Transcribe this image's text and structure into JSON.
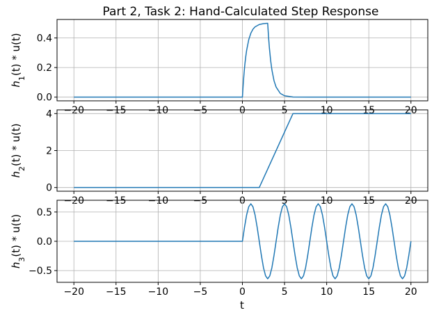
{
  "figure": {
    "title": "Part 2, Task 2: Hand-Calculated Step Response",
    "xlabel": "t",
    "line_color": "#1f77b4",
    "grid": true
  },
  "chart_data": [
    {
      "type": "line",
      "ylabel_func": "h",
      "ylabel_sub": "1",
      "ylabel_rest": "(t) * u(t)",
      "xlim": [
        -22,
        22
      ],
      "ylim": [
        -0.025,
        0.525
      ],
      "xticks": [
        -20,
        -15,
        -10,
        -5,
        0,
        5,
        10,
        15,
        20
      ],
      "xtick_labels": [
        "−20",
        "−15",
        "−10",
        "−5",
        "0",
        "5",
        "10",
        "15",
        "20"
      ],
      "yticks": [
        0.0,
        0.2,
        0.4
      ],
      "ytick_labels": [
        "0.0",
        "0.2",
        "0.4"
      ],
      "x": [
        -20,
        -15,
        -10,
        -5,
        0,
        0.05,
        0.1,
        0.2,
        0.3,
        0.4,
        0.5,
        0.75,
        1,
        1.25,
        1.5,
        2,
        2.5,
        3,
        3.1,
        3.2,
        3.35,
        3.5,
        3.75,
        4,
        4.5,
        5,
        6,
        8,
        10,
        15,
        20
      ],
      "y": [
        0,
        0,
        0,
        0,
        0,
        0.048,
        0.091,
        0.165,
        0.226,
        0.275,
        0.316,
        0.388,
        0.432,
        0.459,
        0.475,
        0.491,
        0.497,
        0.499,
        0.408,
        0.334,
        0.248,
        0.184,
        0.111,
        0.068,
        0.025,
        0.009,
        0.001,
        0,
        0,
        0,
        0
      ]
    },
    {
      "type": "line",
      "ylabel_func": "h",
      "ylabel_sub": "2",
      "ylabel_rest": "(t) * u(t)",
      "xlim": [
        -22,
        22
      ],
      "ylim": [
        -0.2,
        4.2
      ],
      "xticks": [
        -20,
        -15,
        -10,
        -5,
        0,
        5,
        10,
        15,
        20
      ],
      "xtick_labels": [
        "−20",
        "−15",
        "−10",
        "−5",
        "0",
        "5",
        "10",
        "15",
        "20"
      ],
      "yticks": [
        0,
        2,
        4
      ],
      "ytick_labels": [
        "0",
        "2",
        "4"
      ],
      "x": [
        -20,
        2,
        6,
        20
      ],
      "y": [
        0,
        0,
        4,
        4
      ]
    },
    {
      "type": "line",
      "ylabel_func": "h",
      "ylabel_sub": "3",
      "ylabel_rest": "(t) * u(t)",
      "xlim": [
        -22,
        22
      ],
      "ylim": [
        -0.7,
        0.7
      ],
      "xticks": [
        -20,
        -15,
        -10,
        -5,
        0,
        5,
        10,
        15,
        20
      ],
      "xtick_labels": [
        "−20",
        "−15",
        "−10",
        "−5",
        "0",
        "5",
        "10",
        "15",
        "20"
      ],
      "yticks": [
        -0.5,
        0.0,
        0.5
      ],
      "ytick_labels": [
        "−0.5",
        "0.0",
        "0.5"
      ],
      "x": [
        -20,
        -10,
        0,
        0.25,
        0.5,
        0.75,
        1,
        1.25,
        1.5,
        1.75,
        2,
        2.25,
        2.5,
        2.75,
        3,
        3.25,
        3.5,
        3.75,
        4,
        4.25,
        4.5,
        4.75,
        5,
        5.25,
        5.5,
        5.75,
        6,
        6.25,
        6.5,
        6.75,
        7,
        7.25,
        7.5,
        7.75,
        8,
        8.25,
        8.5,
        8.75,
        9,
        9.25,
        9.5,
        9.75,
        10,
        10.25,
        10.5,
        10.75,
        11,
        11.25,
        11.5,
        11.75,
        12,
        12.25,
        12.5,
        12.75,
        13,
        13.25,
        13.5,
        13.75,
        14,
        14.25,
        14.5,
        14.75,
        15,
        15.25,
        15.5,
        15.75,
        16,
        16.25,
        16.5,
        16.75,
        17,
        17.25,
        17.5,
        17.75,
        18,
        18.25,
        18.5,
        18.75,
        19,
        19.25,
        19.5,
        19.75,
        20
      ],
      "y": [
        0,
        0,
        0,
        0.24,
        0.45,
        0.59,
        0.64,
        0.59,
        0.45,
        0.24,
        0,
        -0.24,
        -0.45,
        -0.59,
        -0.64,
        -0.59,
        -0.45,
        -0.24,
        0,
        0.24,
        0.45,
        0.59,
        0.64,
        0.59,
        0.45,
        0.24,
        0,
        -0.24,
        -0.45,
        -0.59,
        -0.64,
        -0.59,
        -0.45,
        -0.24,
        0,
        0.24,
        0.45,
        0.59,
        0.64,
        0.59,
        0.45,
        0.24,
        0,
        -0.24,
        -0.45,
        -0.59,
        -0.64,
        -0.59,
        -0.45,
        -0.24,
        0,
        0.24,
        0.45,
        0.59,
        0.64,
        0.59,
        0.45,
        0.24,
        0,
        -0.24,
        -0.45,
        -0.59,
        -0.64,
        -0.59,
        -0.45,
        -0.24,
        0,
        0.24,
        0.45,
        0.59,
        0.64,
        0.59,
        0.45,
        0.24,
        0,
        -0.24,
        -0.45,
        -0.59,
        -0.64,
        -0.59,
        -0.45,
        -0.24,
        0
      ]
    }
  ]
}
